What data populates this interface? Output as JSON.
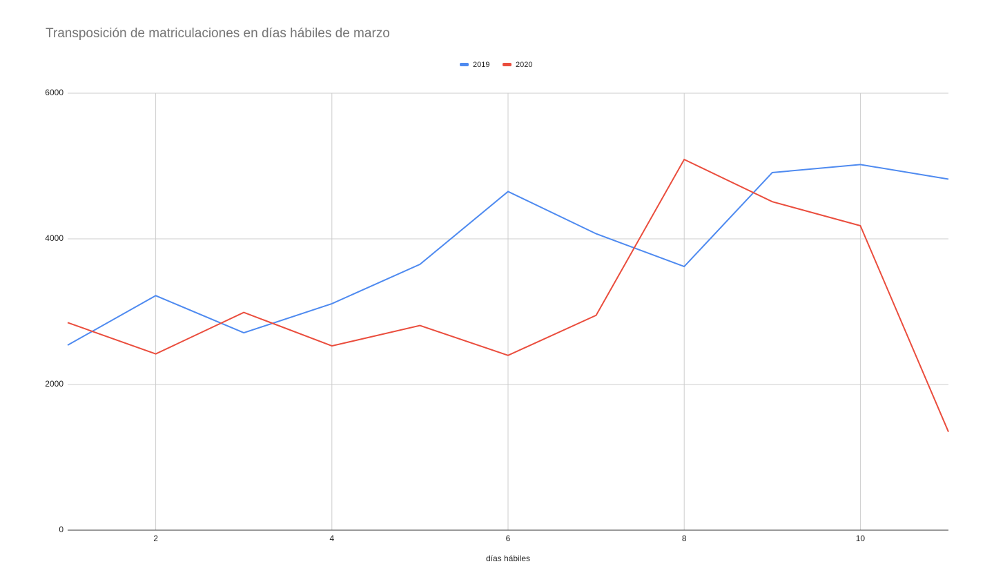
{
  "chart_data": {
    "type": "line",
    "title": "Transposición de matriculaciones en días hábiles de marzo",
    "x_label": "días hábiles",
    "x": [
      1,
      2,
      3,
      4,
      5,
      6,
      7,
      8,
      9,
      10,
      11
    ],
    "series": [
      {
        "name": "2019",
        "color": "#4e8af0",
        "values": [
          2540,
          3220,
          2710,
          3110,
          3650,
          4650,
          4070,
          3620,
          4910,
          5020,
          4820
        ]
      },
      {
        "name": "2020",
        "color": "#ea4d3d",
        "values": [
          2850,
          2420,
          2990,
          2530,
          2810,
          2400,
          2950,
          5090,
          4510,
          4180,
          1350
        ]
      }
    ],
    "xlim": [
      1,
      11
    ],
    "xticks": [
      2,
      4,
      6,
      8,
      10
    ],
    "ylim": [
      0,
      6000
    ],
    "yticks": [
      0,
      2000,
      4000,
      6000
    ],
    "grid": true,
    "legend": "top"
  }
}
